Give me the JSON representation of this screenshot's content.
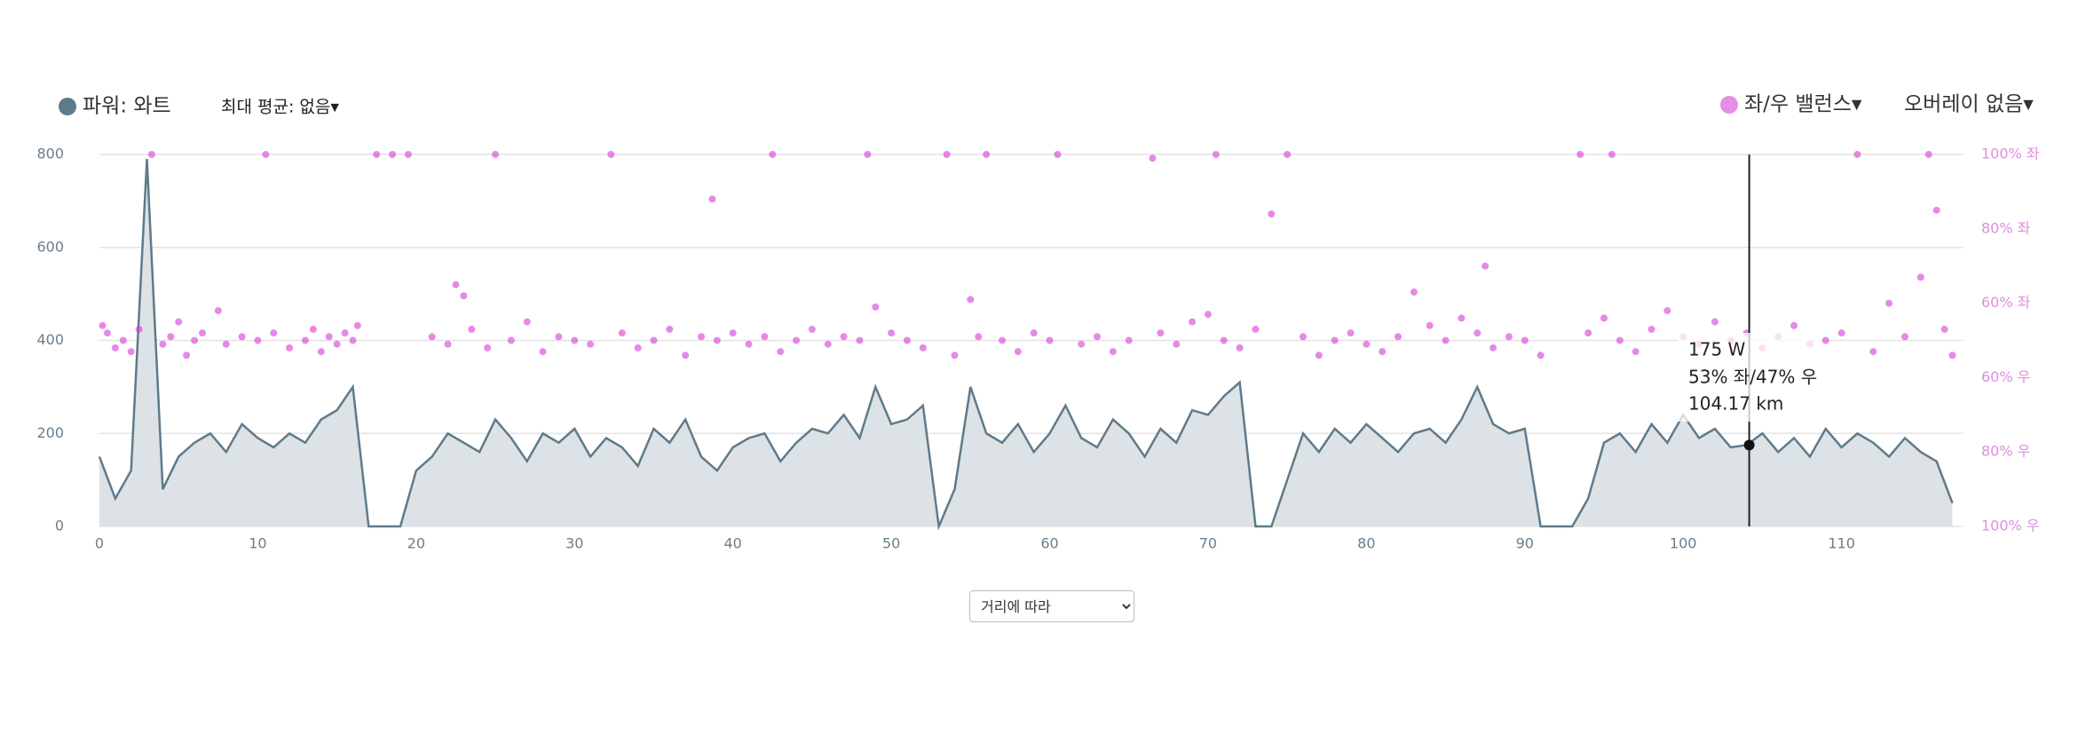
{
  "chart_data": {
    "type": "line",
    "legend": {
      "power": "파워: 와트",
      "max_avg": "최대 평균: 없음▾",
      "balance": "좌/우 밸런스▾",
      "overlay": "오버레이 없음▾"
    },
    "xlim": [
      0,
      117.7
    ],
    "xticks": [
      0,
      10,
      20,
      30,
      40,
      50,
      60,
      70,
      80,
      90,
      100,
      110
    ],
    "ylim": [
      0,
      800
    ],
    "yticks": [
      0,
      200,
      400,
      600,
      800
    ],
    "y2lim": [
      0,
      100
    ],
    "y2ticks": [
      {
        "value": 100,
        "label": "100% 좌"
      },
      {
        "value": 80,
        "label": "80% 좌"
      },
      {
        "value": 60,
        "label": "60% 좌"
      },
      {
        "value": 40,
        "label": "60% 우"
      },
      {
        "value": 20,
        "label": "80% 우"
      },
      {
        "value": 0,
        "label": "100% 우"
      }
    ],
    "grid": true,
    "series": [
      {
        "name": "파워: 와트",
        "color": "#5f7a8a",
        "x": [
          0,
          1,
          2,
          3,
          4,
          5,
          6,
          7,
          8,
          9,
          10,
          11,
          12,
          13,
          14,
          15,
          16,
          17,
          18,
          19,
          20,
          21,
          22,
          23,
          24,
          25,
          26,
          27,
          28,
          29,
          30,
          31,
          32,
          33,
          34,
          35,
          36,
          37,
          38,
          39,
          40,
          41,
          42,
          43,
          44,
          45,
          46,
          47,
          48,
          49,
          50,
          51,
          52,
          53,
          54,
          55,
          56,
          57,
          58,
          59,
          60,
          61,
          62,
          63,
          64,
          65,
          66,
          67,
          68,
          69,
          70,
          71,
          72,
          73,
          74,
          75,
          76,
          77,
          78,
          79,
          80,
          81,
          82,
          83,
          84,
          85,
          86,
          87,
          88,
          89,
          90,
          91,
          92,
          93,
          94,
          95,
          96,
          97,
          98,
          99,
          100,
          101,
          102,
          103,
          104,
          105,
          106,
          107,
          108,
          109,
          110,
          111,
          112,
          113,
          114,
          115,
          116,
          117
        ],
        "values": [
          150,
          60,
          120,
          790,
          80,
          150,
          180,
          200,
          160,
          220,
          190,
          170,
          200,
          180,
          230,
          250,
          300,
          0,
          0,
          0,
          120,
          150,
          200,
          180,
          160,
          230,
          190,
          140,
          200,
          180,
          210,
          150,
          190,
          170,
          130,
          210,
          180,
          230,
          150,
          120,
          170,
          190,
          200,
          140,
          180,
          210,
          200,
          240,
          190,
          300,
          220,
          230,
          260,
          0,
          80,
          300,
          200,
          180,
          220,
          160,
          200,
          260,
          190,
          170,
          230,
          200,
          150,
          210,
          180,
          250,
          240,
          280,
          310,
          0,
          0,
          100,
          200,
          160,
          210,
          180,
          220,
          190,
          160,
          200,
          210,
          180,
          230,
          300,
          220,
          200,
          210,
          0,
          0,
          0,
          60,
          180,
          200,
          160,
          220,
          180,
          240,
          190,
          210,
          170,
          175,
          200,
          160,
          190,
          150,
          210,
          170,
          200,
          180,
          150,
          190,
          160,
          140,
          50
        ]
      },
      {
        "name": "좌/우 밸런스▾",
        "color": "#d63ad6",
        "axis": "y2",
        "type": "scatter",
        "x": [
          0.2,
          0.5,
          1,
          1.5,
          2,
          2.5,
          3.3,
          4,
          4.5,
          5,
          5.5,
          6,
          6.5,
          7.5,
          8,
          9,
          10,
          10.5,
          11,
          12,
          13,
          13.5,
          14,
          14.5,
          15,
          15.5,
          16,
          16.3,
          17.5,
          18.5,
          19.5,
          21,
          22,
          22.5,
          23,
          23.5,
          24.5,
          25,
          26,
          27,
          28,
          29,
          30,
          31,
          32.3,
          33,
          34,
          35,
          36,
          37,
          38,
          38.7,
          39,
          40,
          41,
          42,
          42.5,
          43,
          44,
          45,
          46,
          47,
          48,
          48.5,
          49,
          50,
          51,
          52,
          53.5,
          54,
          55,
          55.5,
          56,
          57,
          58,
          59,
          60,
          60.5,
          62,
          63,
          64,
          65,
          66.5,
          67,
          68,
          69,
          70,
          70.5,
          71,
          72,
          73,
          74,
          75,
          76,
          77,
          78,
          79,
          80,
          81,
          82,
          83,
          84,
          85,
          86,
          87,
          87.5,
          88,
          89,
          90,
          91,
          93.5,
          94,
          95,
          95.5,
          96,
          97,
          98,
          99,
          100,
          101,
          102,
          103,
          104,
          105,
          106,
          107,
          108,
          109,
          110,
          111,
          112,
          113,
          114,
          115,
          115.5,
          116,
          116.5,
          117
        ],
        "values": [
          54,
          52,
          48,
          50,
          47,
          53,
          100,
          49,
          51,
          55,
          46,
          50,
          52,
          58,
          49,
          51,
          50,
          100,
          52,
          48,
          50,
          53,
          47,
          51,
          49,
          52,
          50,
          54,
          100,
          100,
          100,
          51,
          49,
          65,
          62,
          53,
          48,
          100,
          50,
          55,
          47,
          51,
          50,
          49,
          100,
          52,
          48,
          50,
          53,
          46,
          51,
          88,
          50,
          52,
          49,
          51,
          100,
          47,
          50,
          53,
          49,
          51,
          50,
          100,
          59,
          52,
          50,
          48,
          100,
          46,
          61,
          51,
          100,
          50,
          47,
          52,
          50,
          100,
          49,
          51,
          47,
          50,
          99,
          52,
          49,
          55,
          57,
          100,
          50,
          48,
          53,
          84,
          100,
          51,
          46,
          50,
          52,
          49,
          47,
          51,
          63,
          54,
          50,
          56,
          52,
          70,
          48,
          51,
          50,
          46,
          100,
          52,
          56,
          100,
          50,
          47,
          53,
          58,
          51,
          49,
          55,
          50,
          52,
          48,
          51,
          54,
          49,
          50,
          52,
          100,
          47,
          60,
          51,
          67,
          100,
          85,
          53,
          46
        ]
      }
    ],
    "tooltip": {
      "power": {
        "value": 175,
        "label": "175 W"
      },
      "balance": {
        "value": 53,
        "label": "53% 좌/47% 우"
      },
      "distance": {
        "value": 104.17,
        "label": "104.17 km"
      }
    },
    "x_mode": "거리에 따라"
  }
}
